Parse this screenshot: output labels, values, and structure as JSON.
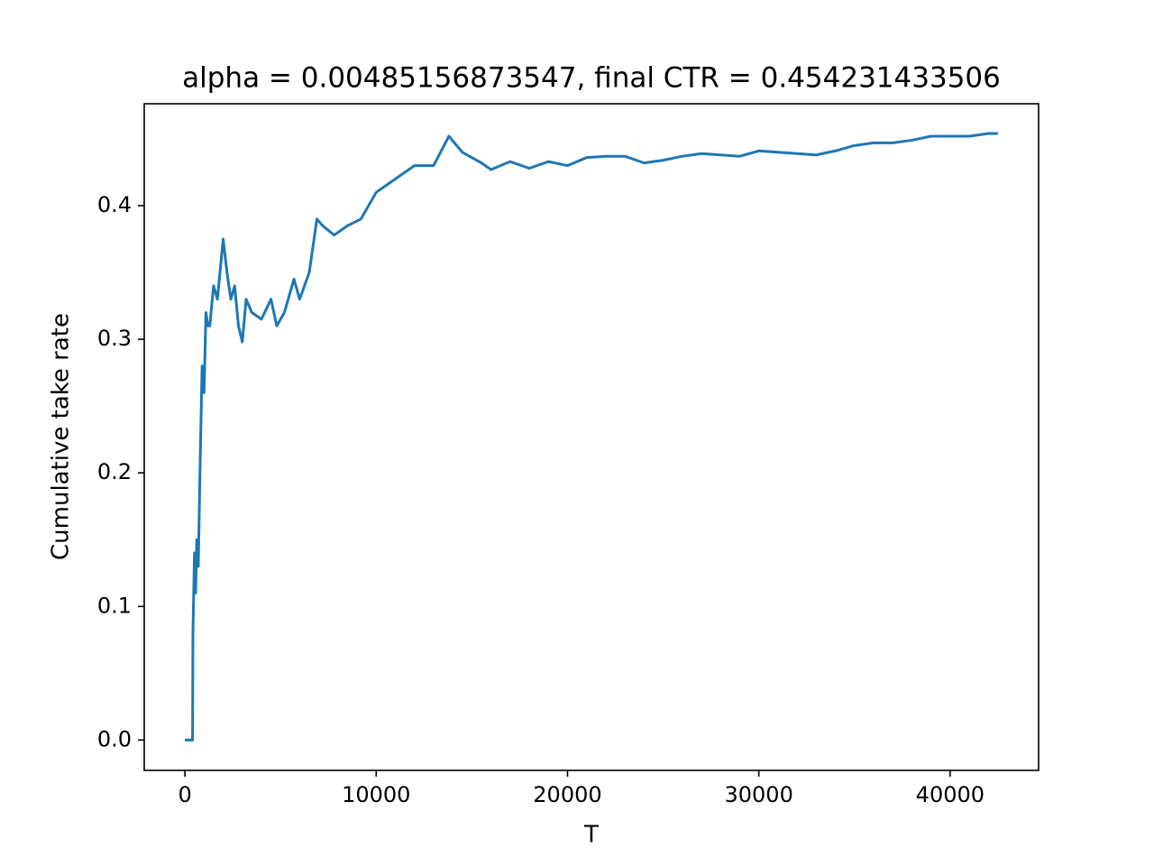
{
  "chart_data": {
    "type": "line",
    "title": "alpha = 0.00485156873547, final CTR = 0.454231433506",
    "x_label": "T",
    "y_label": "Cumulative take rate",
    "xlim": [
      -2125,
      44625
    ],
    "ylim": [
      -0.0227,
      0.4763
    ],
    "xticks": [
      0,
      10000,
      20000,
      30000,
      40000
    ],
    "yticks": [
      {
        "value": 0,
        "label": "0.0"
      },
      0.1,
      0.2,
      0.3,
      0.4
    ],
    "series": [
      {
        "color": "#1f77b4",
        "x": [
          0,
          400,
          420,
          500,
          560,
          620,
          700,
          800,
          900,
          1000,
          1100,
          1200,
          1300,
          1500,
          1700,
          1900,
          2000,
          2200,
          2400,
          2600,
          2800,
          3000,
          3200,
          3500,
          4000,
          4500,
          4800,
          5200,
          5700,
          6000,
          6500,
          6900,
          7200,
          7800,
          8500,
          9200,
          10000,
          10500,
          11000,
          12000,
          13000,
          13800,
          14500,
          15500,
          16000,
          17000,
          18000,
          19000,
          20000,
          21000,
          22000,
          23000,
          24000,
          25000,
          26000,
          27000,
          28000,
          29000,
          30000,
          31000,
          32000,
          33000,
          34000,
          35000,
          36000,
          37000,
          38000,
          39000,
          40000,
          41000,
          42000,
          42500
        ],
        "values": [
          0,
          0,
          0.08,
          0.14,
          0.11,
          0.15,
          0.13,
          0.21,
          0.28,
          0.26,
          0.32,
          0.31,
          0.31,
          0.34,
          0.33,
          0.36,
          0.375,
          0.35,
          0.33,
          0.34,
          0.31,
          0.298,
          0.33,
          0.32,
          0.315,
          0.33,
          0.31,
          0.32,
          0.345,
          0.33,
          0.35,
          0.39,
          0.385,
          0.378,
          0.385,
          0.39,
          0.41,
          0.415,
          0.42,
          0.43,
          0.43,
          0.452,
          0.44,
          0.432,
          0.427,
          0.433,
          0.428,
          0.433,
          0.43,
          0.436,
          0.437,
          0.437,
          0.432,
          0.434,
          0.437,
          0.439,
          0.438,
          0.437,
          0.441,
          0.44,
          0.439,
          0.438,
          0.441,
          0.445,
          0.447,
          0.447,
          0.449,
          0.452,
          0.452,
          0.452,
          0.454,
          0.454
        ]
      }
    ]
  }
}
